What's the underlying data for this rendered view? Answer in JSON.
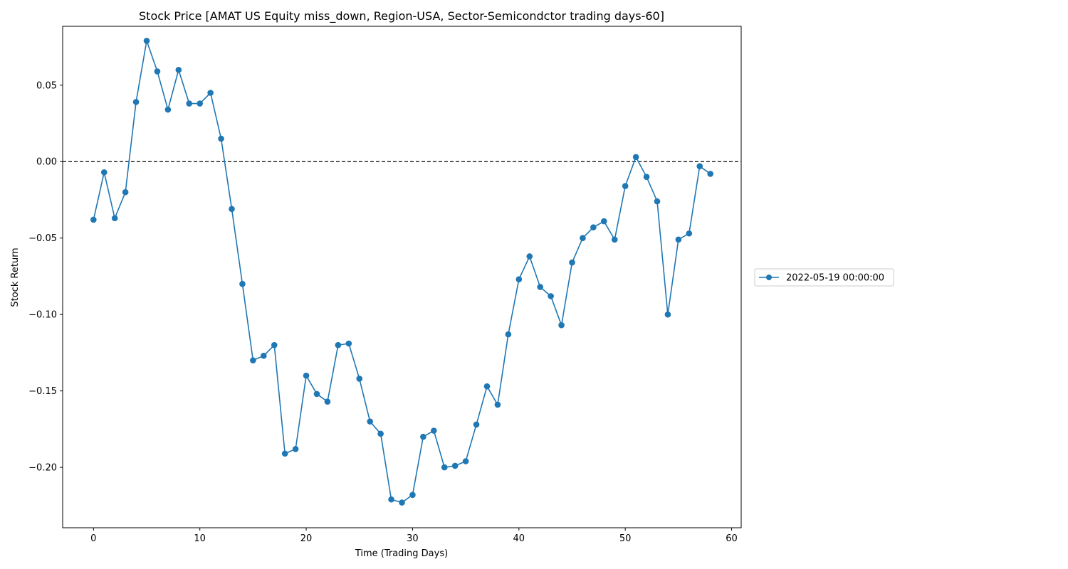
{
  "chart_data": {
    "type": "line",
    "title": "Stock Price [AMAT US Equity miss_down, Region-USA, Sector-Semicondctor trading days-60]",
    "xlabel": "Time (Trading Days)",
    "ylabel": "Stock Return",
    "xlim": [
      -2.9,
      60.9
    ],
    "ylim": [
      -0.2395,
      0.0885
    ],
    "x_ticks": [
      0,
      10,
      20,
      30,
      40,
      50,
      60
    ],
    "x_tick_labels": [
      "0",
      "10",
      "20",
      "30",
      "40",
      "50",
      "60"
    ],
    "y_ticks": [
      0.05,
      0.0,
      -0.05,
      -0.1,
      -0.15,
      -0.2
    ],
    "y_tick_labels": [
      "0.05",
      "0.00",
      "−0.05",
      "−0.10",
      "−0.15",
      "−0.20"
    ],
    "reference_line": {
      "y": 0.0,
      "style": "dashed",
      "color": "#000000"
    },
    "grid": false,
    "legend_placement": "right-center, outside plot",
    "series": [
      {
        "name": "2022-05-19 00:00:00",
        "color": "#1f77b4",
        "marker": "circle",
        "x": [
          0,
          1,
          2,
          3,
          4,
          5,
          6,
          7,
          8,
          9,
          10,
          11,
          12,
          13,
          14,
          15,
          16,
          17,
          18,
          19,
          20,
          21,
          22,
          23,
          24,
          25,
          26,
          27,
          28,
          29,
          30,
          31,
          32,
          33,
          34,
          35,
          36,
          37,
          38,
          39,
          40,
          41,
          42,
          43,
          44,
          45,
          46,
          47,
          48,
          49,
          50,
          51,
          52,
          53,
          54,
          55,
          56,
          57,
          58
        ],
        "values": [
          -0.038,
          -0.007,
          -0.037,
          -0.02,
          0.039,
          0.079,
          0.059,
          0.034,
          0.06,
          0.038,
          0.038,
          0.045,
          0.015,
          -0.031,
          -0.08,
          -0.13,
          -0.127,
          -0.12,
          -0.191,
          -0.188,
          -0.14,
          -0.152,
          -0.157,
          -0.12,
          -0.119,
          -0.142,
          -0.17,
          -0.178,
          -0.221,
          -0.223,
          -0.218,
          -0.18,
          -0.176,
          -0.2,
          -0.199,
          -0.196,
          -0.172,
          -0.147,
          -0.159,
          -0.113,
          -0.077,
          -0.062,
          -0.082,
          -0.088,
          -0.107,
          -0.066,
          -0.05,
          -0.043,
          -0.039,
          -0.051,
          -0.016,
          0.003,
          -0.01,
          -0.026,
          -0.1,
          -0.051,
          -0.047,
          -0.003,
          -0.008
        ]
      }
    ]
  }
}
